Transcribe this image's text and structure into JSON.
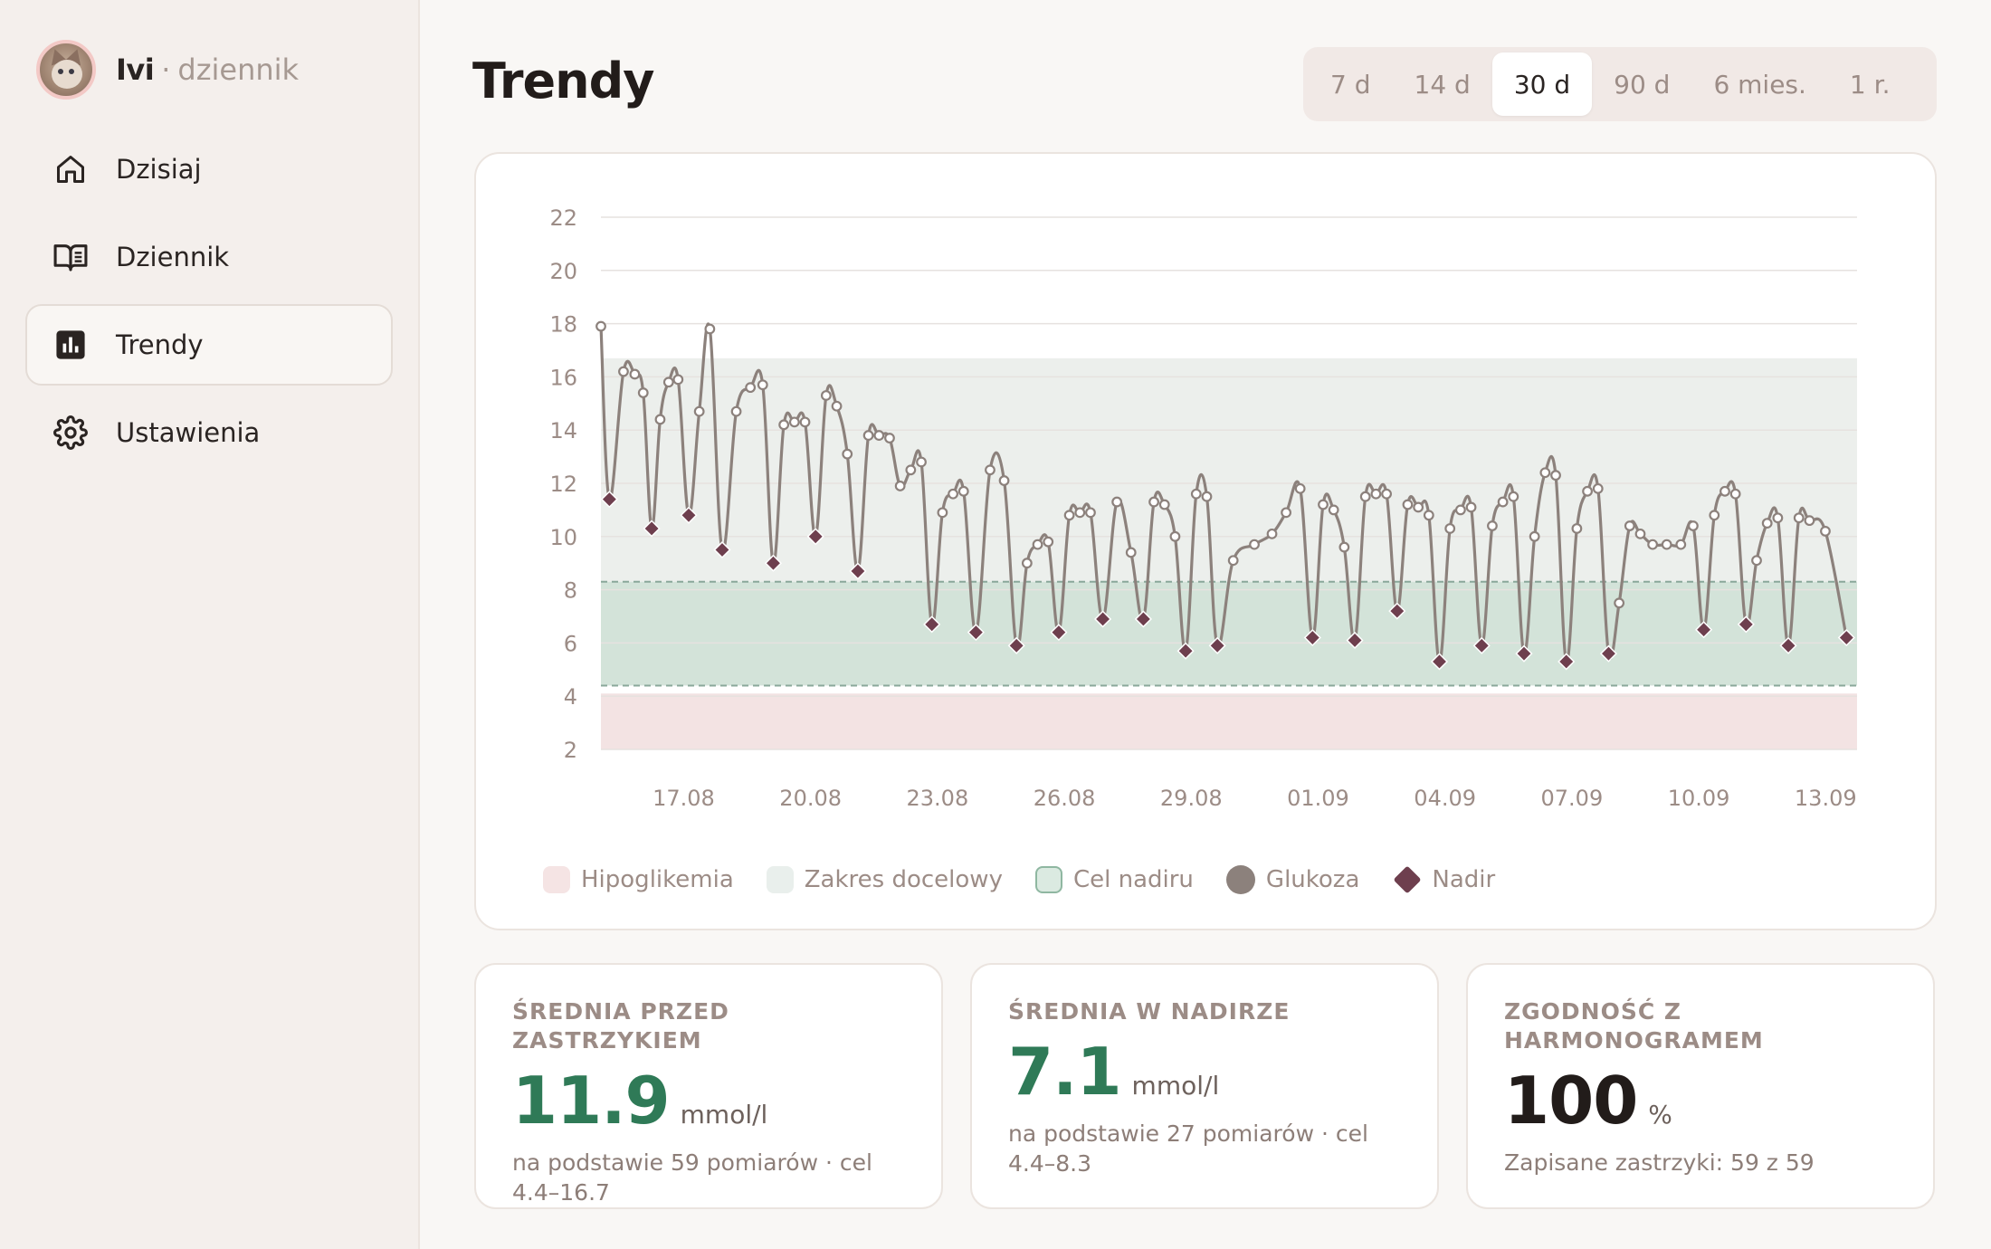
{
  "brand": {
    "name": "Ivi",
    "separator": "·",
    "subtitle": "dziennik"
  },
  "nav": [
    {
      "label": "Dzisiaj",
      "icon": "home-icon",
      "active": false
    },
    {
      "label": "Dziennik",
      "icon": "book-icon",
      "active": false
    },
    {
      "label": "Trendy",
      "icon": "bar-chart-icon",
      "active": true
    },
    {
      "label": "Ustawienia",
      "icon": "gear-icon",
      "active": false
    }
  ],
  "page_title": "Trendy",
  "ranges": [
    {
      "label": "7 d",
      "active": false
    },
    {
      "label": "14 d",
      "active": false
    },
    {
      "label": "30 d",
      "active": true
    },
    {
      "label": "90 d",
      "active": false
    },
    {
      "label": "6 mies.",
      "active": false
    },
    {
      "label": "1 r.",
      "active": false
    }
  ],
  "colors": {
    "glucose": "#8c817c",
    "nadir": "#6e3f4e",
    "hypo_band": "#f3e3e3",
    "target_band": "#ecefec",
    "nadir_band": "#cfe0d6",
    "accent_green": "#2f7a57"
  },
  "chart_data": {
    "type": "line",
    "title": "",
    "xlabel": "",
    "ylabel": "",
    "ylim": [
      2,
      22
    ],
    "y_ticks": [
      2,
      4,
      6,
      8,
      10,
      12,
      14,
      16,
      18,
      20,
      22
    ],
    "x_range": [
      "2024-08-15",
      "2024-09-13"
    ],
    "x_ticks": [
      "17.08",
      "20.08",
      "23.08",
      "26.08",
      "29.08",
      "01.09",
      "04.09",
      "07.09",
      "10.09",
      "13.09"
    ],
    "bands": [
      {
        "name": "Hipoglikemia",
        "from": 2,
        "to": 4.1
      },
      {
        "name": "Zakres docelowy",
        "from": 4.4,
        "to": 16.7
      },
      {
        "name": "Cel nadiru",
        "from": 4.4,
        "to": 8.3
      }
    ],
    "series": [
      {
        "name": "Glukoza",
        "points": [
          [
            "15.08",
            17.9
          ],
          [
            "15.08",
            11.4
          ],
          [
            "15.08",
            16.2
          ],
          [
            "16.08",
            16.1
          ],
          [
            "16.08",
            15.4
          ],
          [
            "16.08",
            10.3
          ],
          [
            "16.08",
            14.4
          ],
          [
            "16.08",
            15.8
          ],
          [
            "17.08",
            15.9
          ],
          [
            "17.08",
            10.8
          ],
          [
            "17.08",
            14.7
          ],
          [
            "17.08",
            17.8
          ],
          [
            "18.08",
            9.5
          ],
          [
            "18.08",
            14.7
          ],
          [
            "18.08",
            15.6
          ],
          [
            "19.08",
            15.7
          ],
          [
            "19.08",
            9.0
          ],
          [
            "19.08",
            14.2
          ],
          [
            "19.08",
            14.3
          ],
          [
            "20.08",
            14.3
          ],
          [
            "20.08",
            10.0
          ],
          [
            "20.08",
            15.3
          ],
          [
            "20.08",
            14.9
          ],
          [
            "21.08",
            13.1
          ],
          [
            "21.08",
            8.7
          ],
          [
            "21.08",
            13.8
          ],
          [
            "21.08",
            13.8
          ],
          [
            "22.08",
            13.7
          ],
          [
            "22.08",
            11.9
          ],
          [
            "22.08",
            12.5
          ],
          [
            "22.08",
            12.8
          ],
          [
            "23.08",
            6.7
          ],
          [
            "23.08",
            10.9
          ],
          [
            "23.08",
            11.6
          ],
          [
            "23.08",
            11.7
          ],
          [
            "24.08",
            6.4
          ],
          [
            "24.08",
            12.5
          ],
          [
            "24.08",
            12.1
          ],
          [
            "25.08",
            5.9
          ],
          [
            "25.08",
            9.0
          ],
          [
            "25.08",
            9.7
          ],
          [
            "25.08",
            9.8
          ],
          [
            "26.08",
            6.4
          ],
          [
            "26.08",
            10.8
          ],
          [
            "26.08",
            10.9
          ],
          [
            "26.08",
            10.9
          ],
          [
            "27.08",
            6.9
          ],
          [
            "27.08",
            11.3
          ],
          [
            "27.08",
            9.4
          ],
          [
            "28.08",
            6.9
          ],
          [
            "28.08",
            11.3
          ],
          [
            "28.08",
            11.2
          ],
          [
            "28.08",
            10.0
          ],
          [
            "29.08",
            5.7
          ],
          [
            "29.08",
            11.6
          ],
          [
            "29.08",
            11.5
          ],
          [
            "29.08",
            5.9
          ],
          [
            "30.08",
            9.1
          ],
          [
            "30.08",
            9.7
          ],
          [
            "31.08",
            10.1
          ],
          [
            "31.08",
            10.9
          ],
          [
            "31.08",
            11.8
          ],
          [
            "01.09",
            6.2
          ],
          [
            "01.09",
            11.2
          ],
          [
            "01.09",
            11.0
          ],
          [
            "01.09",
            9.6
          ],
          [
            "02.09",
            6.1
          ],
          [
            "02.09",
            11.5
          ],
          [
            "02.09",
            11.6
          ],
          [
            "02.09",
            11.6
          ],
          [
            "03.09",
            7.2
          ],
          [
            "03.09",
            11.2
          ],
          [
            "03.09",
            11.1
          ],
          [
            "03.09",
            10.8
          ],
          [
            "04.09",
            5.3
          ],
          [
            "04.09",
            10.3
          ],
          [
            "04.09",
            11.0
          ],
          [
            "04.09",
            11.1
          ],
          [
            "05.09",
            5.9
          ],
          [
            "05.09",
            10.4
          ],
          [
            "05.09",
            11.3
          ],
          [
            "05.09",
            11.5
          ],
          [
            "06.09",
            5.6
          ],
          [
            "06.09",
            10.0
          ],
          [
            "06.09",
            12.4
          ],
          [
            "06.09",
            12.3
          ],
          [
            "07.09",
            5.3
          ],
          [
            "07.09",
            10.3
          ],
          [
            "07.09",
            11.7
          ],
          [
            "07.09",
            11.8
          ],
          [
            "08.09",
            5.6
          ],
          [
            "08.09",
            7.5
          ],
          [
            "08.09",
            10.4
          ],
          [
            "08.09",
            10.1
          ],
          [
            "09.09",
            9.7
          ],
          [
            "09.09",
            9.7
          ],
          [
            "09.09",
            9.7
          ],
          [
            "10.09",
            10.4
          ],
          [
            "10.09",
            6.5
          ],
          [
            "10.09",
            10.8
          ],
          [
            "10.09",
            11.7
          ],
          [
            "11.09",
            11.6
          ],
          [
            "11.09",
            6.7
          ],
          [
            "11.09",
            9.1
          ],
          [
            "11.09",
            10.5
          ],
          [
            "12.09",
            10.7
          ],
          [
            "12.09",
            5.9
          ],
          [
            "12.09",
            10.7
          ],
          [
            "12.09",
            10.6
          ],
          [
            "13.09",
            10.2
          ],
          [
            "13.09",
            6.2
          ]
        ]
      },
      {
        "name": "Nadir",
        "points": [
          [
            "15.08",
            11.4
          ],
          [
            "16.08",
            10.3
          ],
          [
            "17.08",
            10.8
          ],
          [
            "18.08",
            9.5
          ],
          [
            "19.08",
            9.0
          ],
          [
            "20.08",
            10.0
          ],
          [
            "21.08",
            8.7
          ],
          [
            "23.08",
            6.7
          ],
          [
            "24.08",
            6.4
          ],
          [
            "25.08",
            5.9
          ],
          [
            "26.08",
            6.4
          ],
          [
            "27.08",
            6.9
          ],
          [
            "28.08",
            6.9
          ],
          [
            "29.08",
            5.7
          ],
          [
            "29.08",
            5.9
          ],
          [
            "01.09",
            6.2
          ],
          [
            "02.09",
            6.1
          ],
          [
            "03.09",
            7.2
          ],
          [
            "04.09",
            5.3
          ],
          [
            "05.09",
            5.9
          ],
          [
            "06.09",
            5.6
          ],
          [
            "07.09",
            5.3
          ],
          [
            "08.09",
            5.6
          ],
          [
            "10.09",
            6.5
          ],
          [
            "11.09",
            6.7
          ],
          [
            "12.09",
            5.9
          ],
          [
            "13.09",
            6.2
          ]
        ]
      }
    ]
  },
  "legend": [
    {
      "label": "Hipoglikemia",
      "kind": "hypo"
    },
    {
      "label": "Zakres docelowy",
      "kind": "target"
    },
    {
      "label": "Cel nadiru",
      "kind": "nadir-target"
    },
    {
      "label": "Glukoza",
      "kind": "glucose"
    },
    {
      "label": "Nadir",
      "kind": "nadir"
    }
  ],
  "stats": [
    {
      "title": "ŚREDNIA PRZED ZASTRZYKIEM",
      "value": "11.9",
      "unit": "mmol/l",
      "note": "na podstawie 59 pomiarów · cel 4.4–16.7"
    },
    {
      "title": "ŚREDNIA W NADIRZE",
      "value": "7.1",
      "unit": "mmol/l",
      "note": "na podstawie 27 pomiarów · cel 4.4–8.3"
    },
    {
      "title": "ZGODNOŚĆ Z HARMONOGRAMEM",
      "value": "100",
      "unit": "%",
      "note": "Zapisane zastrzyki: 59 z 59"
    }
  ]
}
